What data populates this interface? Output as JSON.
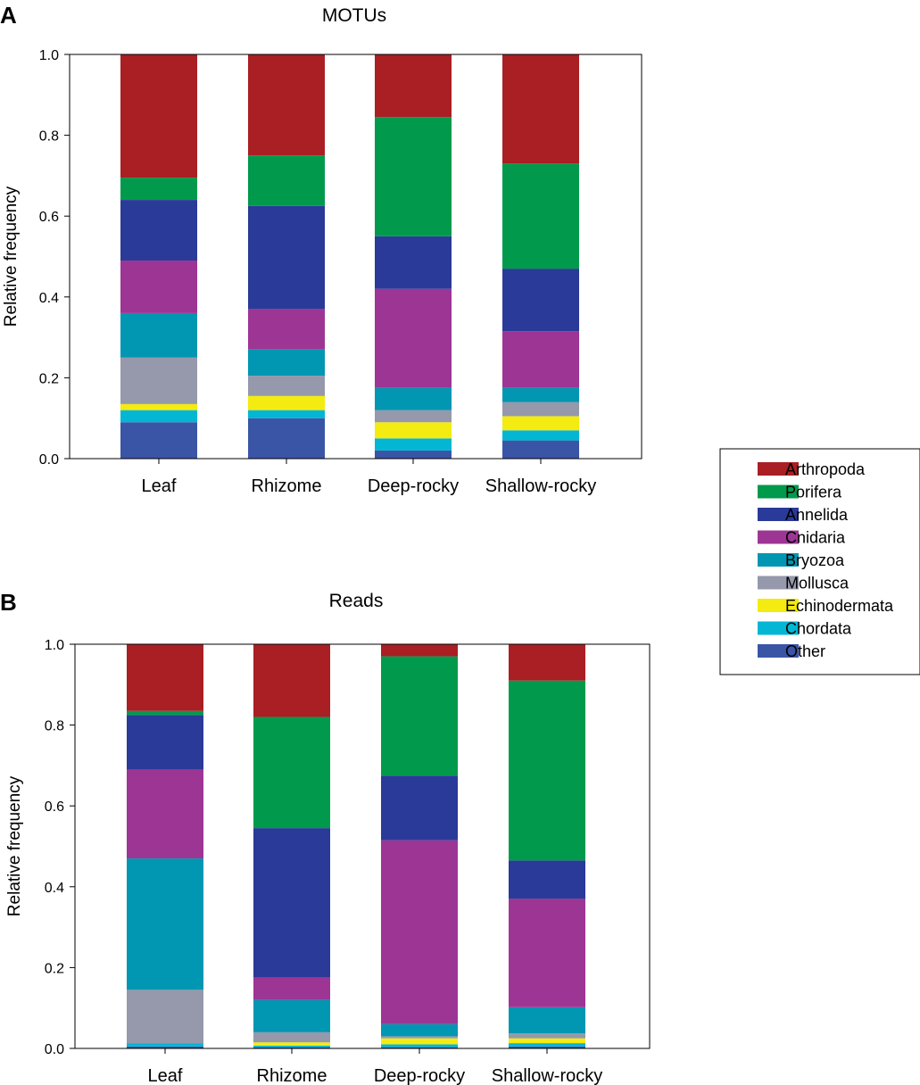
{
  "chart_data": [
    {
      "type": "bar",
      "stacked": true,
      "panel": "A",
      "title": "MOTUs",
      "xlabel": "",
      "ylabel": "Relative frequency",
      "ylim": [
        0,
        1
      ],
      "yticks": [
        "0.0",
        "0.2",
        "0.4",
        "0.6",
        "0.8",
        "1.0"
      ],
      "categories": [
        "Leaf",
        "Rhizome",
        "Deep-rocky",
        "Shallow-rocky"
      ],
      "series": [
        {
          "name": "Other",
          "values": [
            0.09,
            0.1,
            0.02,
            0.045
          ]
        },
        {
          "name": "Chordata",
          "values": [
            0.03,
            0.02,
            0.03,
            0.025
          ]
        },
        {
          "name": "Echinodermata",
          "values": [
            0.015,
            0.035,
            0.04,
            0.035
          ]
        },
        {
          "name": "Mollusca",
          "values": [
            0.115,
            0.05,
            0.03,
            0.035
          ]
        },
        {
          "name": "Bryozoa",
          "values": [
            0.11,
            0.065,
            0.055,
            0.035
          ]
        },
        {
          "name": "Cnidaria",
          "values": [
            0.13,
            0.1,
            0.245,
            0.14
          ]
        },
        {
          "name": "Annelida",
          "values": [
            0.15,
            0.255,
            0.13,
            0.155
          ]
        },
        {
          "name": "Porifera",
          "values": [
            0.055,
            0.125,
            0.295,
            0.26
          ]
        },
        {
          "name": "Arthropoda",
          "values": [
            0.305,
            0.25,
            0.155,
            0.27
          ]
        }
      ]
    },
    {
      "type": "bar",
      "stacked": true,
      "panel": "B",
      "title": "Reads",
      "xlabel": "",
      "ylabel": "Relative frequency",
      "ylim": [
        0,
        1
      ],
      "yticks": [
        "0.0",
        "0.2",
        "0.4",
        "0.6",
        "0.8",
        "1.0"
      ],
      "categories": [
        "Leaf",
        "Rhizome",
        "Deep-rocky",
        "Shallow-rocky"
      ],
      "series": [
        {
          "name": "Other",
          "values": [
            0.005,
            0.003,
            0.003,
            0.005
          ]
        },
        {
          "name": "Chordata",
          "values": [
            0.008,
            0.004,
            0.007,
            0.008
          ]
        },
        {
          "name": "Echinodermata",
          "values": [
            0.0,
            0.008,
            0.015,
            0.012
          ]
        },
        {
          "name": "Mollusca",
          "values": [
            0.132,
            0.025,
            0.005,
            0.012
          ]
        },
        {
          "name": "Bryozoa",
          "values": [
            0.325,
            0.08,
            0.03,
            0.065
          ]
        },
        {
          "name": "Cnidaria",
          "values": [
            0.22,
            0.055,
            0.455,
            0.268
          ]
        },
        {
          "name": "Annelida",
          "values": [
            0.135,
            0.37,
            0.16,
            0.095
          ]
        },
        {
          "name": "Porifera",
          "values": [
            0.01,
            0.275,
            0.295,
            0.445
          ]
        },
        {
          "name": "Arthropoda",
          "values": [
            0.165,
            0.18,
            0.03,
            0.09
          ]
        }
      ]
    }
  ],
  "legend": {
    "items": [
      {
        "name": "Arthropoda",
        "color": "#A91F23"
      },
      {
        "name": "Porifera",
        "color": "#019A4C"
      },
      {
        "name": "Annelida",
        "color": "#2A3A98"
      },
      {
        "name": "Cnidaria",
        "color": "#9D3594"
      },
      {
        "name": "Bryozoa",
        "color": "#0196B1"
      },
      {
        "name": "Mollusca",
        "color": "#9599AB"
      },
      {
        "name": "Echinodermata",
        "color": "#F4EB11"
      },
      {
        "name": "Chordata",
        "color": "#03B6D4"
      },
      {
        "name": "Other",
        "color": "#3A55A6"
      }
    ]
  }
}
